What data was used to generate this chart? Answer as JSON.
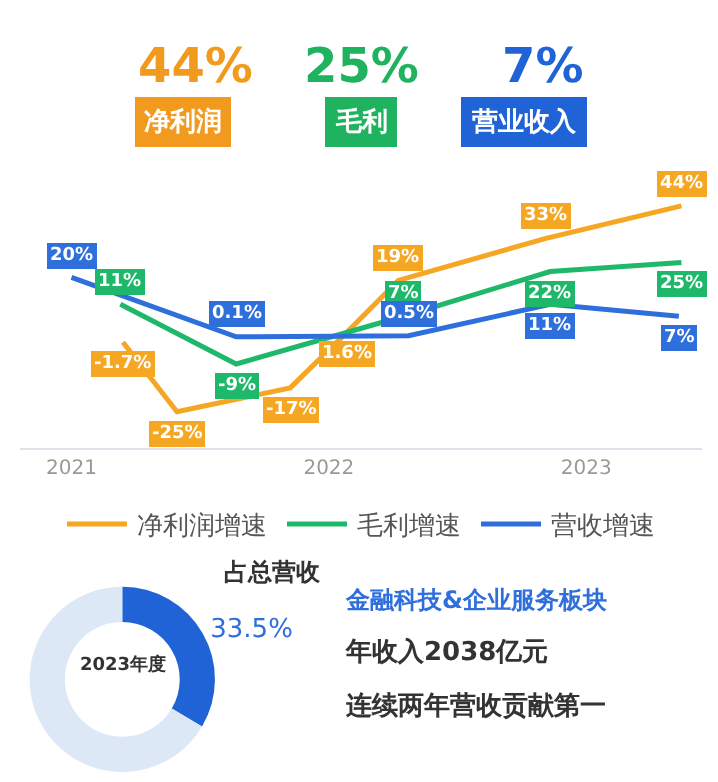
{
  "chart_data": [
    {
      "type": "other",
      "annotations": [
        "44%",
        "净利润",
        "25%",
        "毛利",
        "7%",
        "营业收入"
      ],
      "colors": [
        "#f29a1e",
        "#1fb25f",
        "#1f63d6"
      ]
    },
    {
      "type": "line",
      "legend": "bottom",
      "marker": "none",
      "line_style": "solid",
      "xlim": [
        2020.8,
        2023.45
      ],
      "xticks": [
        2021,
        2022,
        2023
      ],
      "tick_labels": "x",
      "series": [
        {
          "name": "净利润增速",
          "color": "#f5a623",
          "x": [
            2021.2,
            2021.41,
            2021.85,
            2022.07,
            2022.27,
            2022.84,
            2023.37
          ],
          "values": [
            -1.7,
            -25,
            -17,
            1.6,
            19,
            33,
            44
          ],
          "value_labels": [
            "-1.7%",
            "-25%",
            "-17%",
            "1.6%",
            "19%",
            "33%",
            "44%"
          ]
        },
        {
          "name": "毛利增速",
          "color": "#1fb86a",
          "x": [
            2021.19,
            2021.64,
            2022.29,
            2022.86,
            2023.37
          ],
          "values": [
            11,
            -9,
            7,
            22,
            25
          ],
          "value_labels": [
            "11%",
            "-9%",
            "7%",
            "22%",
            "25%"
          ]
        },
        {
          "name": "营收增速",
          "color": "#2f6fdc",
          "x": [
            2021.0,
            2021.64,
            2022.31,
            2022.86,
            2023.36
          ],
          "values": [
            20,
            0.1,
            0.5,
            11,
            7
          ],
          "value_labels": [
            "20%",
            "0.1%",
            "0.5%",
            "11%",
            "7%"
          ]
        }
      ]
    },
    {
      "type": "donut",
      "categories": [
        null,
        null
      ],
      "values": [
        33.5,
        66.5
      ],
      "colors": [
        "#1f63d6",
        "#dde8f7"
      ],
      "value_labels": [
        "33.5%",
        null
      ],
      "annotations": [
        "2023年度",
        "占总营收"
      ]
    },
    {
      "type": "other",
      "annotations": [
        "金融科技&企业服务板块",
        "年收入2038亿元",
        "连续两年营收贡献第一"
      ]
    }
  ]
}
